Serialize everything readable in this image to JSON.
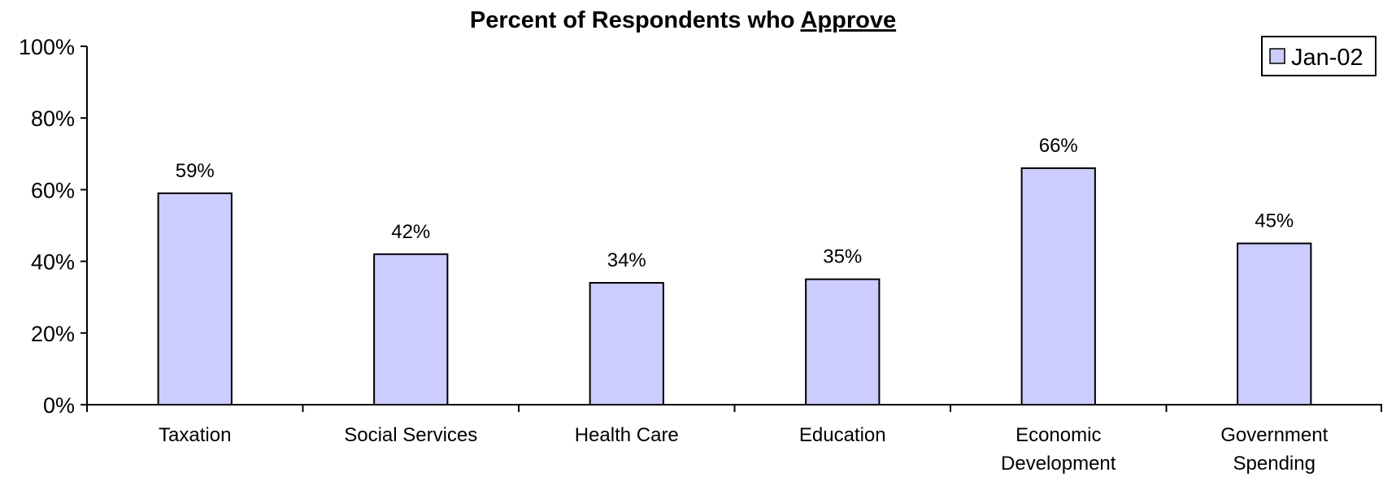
{
  "chart_data": {
    "type": "bar",
    "title": {
      "prefix": "Percent of Respondents who ",
      "emphasis": "Approve"
    },
    "categories": [
      [
        "Taxation"
      ],
      [
        "Social Services"
      ],
      [
        "Health Care"
      ],
      [
        "Education"
      ],
      [
        "Economic",
        "Development"
      ],
      [
        "Government",
        "Spending"
      ]
    ],
    "series": [
      {
        "name": "Jan-02",
        "values": [
          59,
          42,
          34,
          35,
          66,
          45
        ],
        "color": "#ccccff"
      }
    ],
    "data_labels": [
      "59%",
      "42%",
      "34%",
      "35%",
      "66%",
      "45%"
    ],
    "yticks": [
      "0%",
      "20%",
      "40%",
      "60%",
      "80%",
      "100%"
    ],
    "ylim": [
      0,
      100
    ],
    "ytick_step": 20,
    "grid": false,
    "legend_position": "top-right"
  }
}
